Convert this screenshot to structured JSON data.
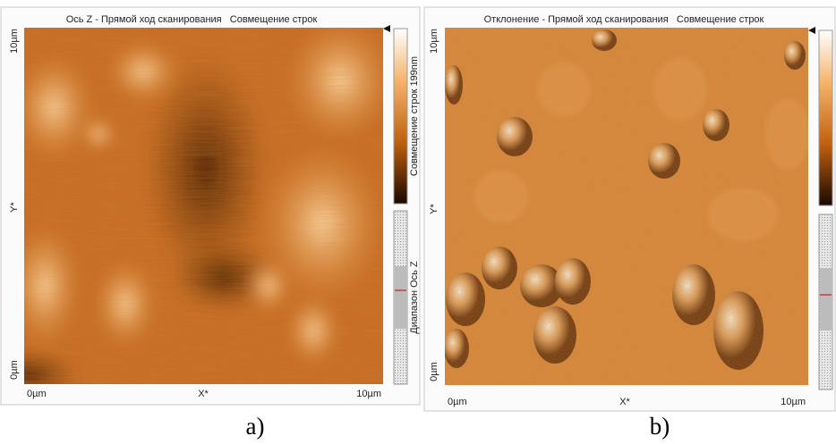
{
  "panels": [
    {
      "title": "Ось Z - Прямой ход сканирования   Совмещение строк",
      "y_top": "10µm",
      "y_mid": "Y*",
      "y_bottom": "0µm",
      "x_left": "0µm",
      "x_mid": "X*",
      "x_right": "10µm",
      "colorbar_label": "Совмещение строк 199nm",
      "range_label": "Диапазон Ось Z",
      "caption": "a)"
    },
    {
      "title": "Отклонение - Прямой ход сканирования   Совмещение строк",
      "y_top": "10µm",
      "y_mid": "Y*",
      "y_bottom": "0µm",
      "x_left": "0µm",
      "x_mid": "X*",
      "x_right": "10µm",
      "caption": "b)"
    }
  ]
}
